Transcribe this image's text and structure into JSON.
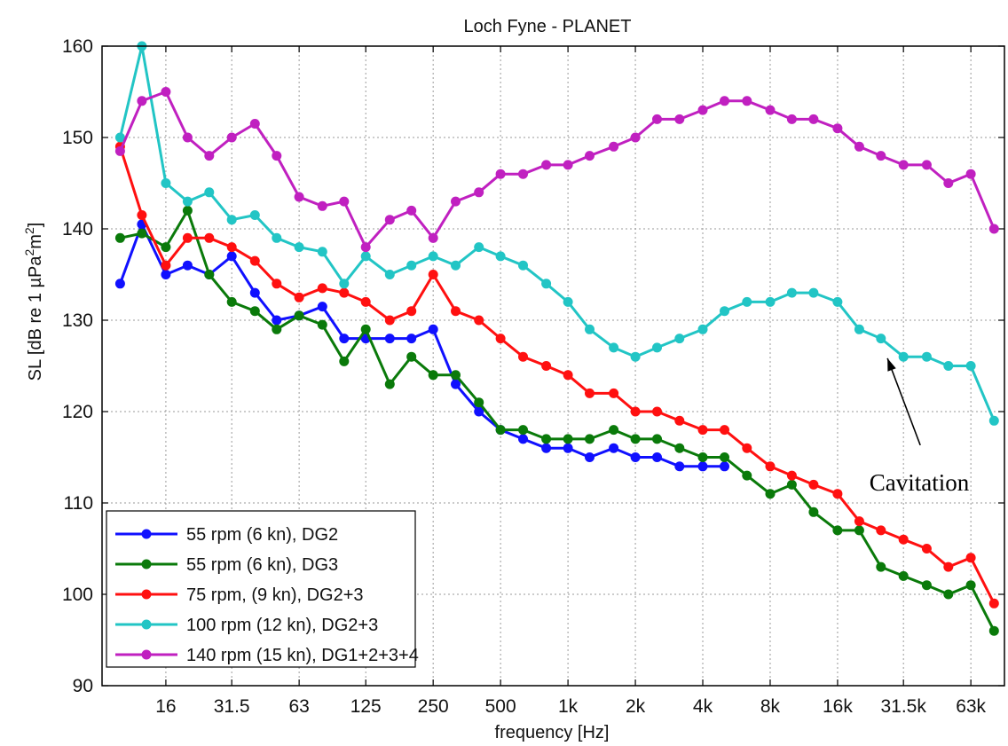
{
  "chart_data": {
    "type": "line",
    "title": "Loch Fyne - PLANET",
    "xlabel": "frequency [Hz]",
    "ylabel": "SL [dB re 1 µPa²m²]",
    "ylabel_parts": {
      "prefix": "SL [dB re 1 ",
      "mu": "µ",
      "pa": "Pa",
      "sup1": "2",
      "m": "m",
      "sup2": "2",
      "close": "]"
    },
    "x_scale": "log",
    "xlim": [
      8.3,
      89000
    ],
    "ylim": [
      90,
      160
    ],
    "x_ticks": [
      {
        "value": 16,
        "label": "16"
      },
      {
        "value": 31.5,
        "label": "31.5"
      },
      {
        "value": 63,
        "label": "63"
      },
      {
        "value": 125,
        "label": "125"
      },
      {
        "value": 250,
        "label": "250"
      },
      {
        "value": 500,
        "label": "500"
      },
      {
        "value": 1000,
        "label": "1k"
      },
      {
        "value": 2000,
        "label": "2k"
      },
      {
        "value": 4000,
        "label": "4k"
      },
      {
        "value": 8000,
        "label": "8k"
      },
      {
        "value": 16000,
        "label": "16k"
      },
      {
        "value": 31500,
        "label": "31.5k"
      },
      {
        "value": 63000,
        "label": "63k"
      }
    ],
    "y_ticks": [
      {
        "value": 90,
        "label": "90"
      },
      {
        "value": 100,
        "label": "100"
      },
      {
        "value": 110,
        "label": "110"
      },
      {
        "value": 120,
        "label": "120"
      },
      {
        "value": 130,
        "label": "130"
      },
      {
        "value": 140,
        "label": "140"
      },
      {
        "value": 150,
        "label": "150"
      },
      {
        "value": 160,
        "label": "160"
      }
    ],
    "grid": true,
    "legend_position": "bottom-left",
    "series": [
      {
        "name": "55 rpm (6 kn), DG2",
        "color": "#1010ff",
        "x": [
          10,
          12.5,
          16,
          20,
          25,
          31.5,
          40,
          50,
          63,
          80,
          100,
          125,
          160,
          200,
          250,
          315,
          400,
          500,
          630,
          800,
          1000,
          1250,
          1600,
          2000,
          2500,
          3150,
          4000,
          5000
        ],
        "y": [
          134,
          140.5,
          135,
          136,
          135,
          137,
          133,
          130,
          130.5,
          131.5,
          128,
          128,
          128,
          128,
          129,
          123,
          120,
          118,
          117,
          116,
          116,
          115,
          116,
          115,
          115,
          114,
          114,
          114
        ]
      },
      {
        "name": "55 rpm (6 kn), DG3",
        "color": "#0a7a0a",
        "x": [
          10,
          12.5,
          16,
          20,
          25,
          31.5,
          40,
          50,
          63,
          80,
          100,
          125,
          160,
          200,
          250,
          315,
          400,
          500,
          630,
          800,
          1000,
          1250,
          1600,
          2000,
          2500,
          3150,
          4000,
          5000,
          6300,
          8000,
          10000,
          12500,
          16000,
          20000,
          25000,
          31500,
          40000,
          50000,
          63000,
          80000
        ],
        "y": [
          139,
          139.5,
          138,
          142,
          135,
          132,
          131,
          129,
          130.5,
          129.5,
          125.5,
          129,
          123,
          126,
          124,
          124,
          121,
          118,
          118,
          117,
          117,
          117,
          118,
          117,
          117,
          116,
          115,
          115,
          113,
          111,
          112,
          109,
          107,
          107,
          103,
          102,
          101,
          100,
          101,
          96
        ]
      },
      {
        "name": "75 rpm, (9 kn), DG2+3",
        "color": "#ff1010",
        "x": [
          10,
          12.5,
          16,
          20,
          25,
          31.5,
          40,
          50,
          63,
          80,
          100,
          125,
          160,
          200,
          250,
          315,
          400,
          500,
          630,
          800,
          1000,
          1250,
          1600,
          2000,
          2500,
          3150,
          4000,
          5000,
          6300,
          8000,
          10000,
          12500,
          16000,
          20000,
          25000,
          31500,
          40000,
          50000,
          63000,
          80000
        ],
        "y": [
          149,
          141.5,
          136,
          139,
          139,
          138,
          136.5,
          134,
          132.5,
          133.5,
          133,
          132,
          130,
          131,
          135,
          131,
          130,
          128,
          126,
          125,
          124,
          122,
          122,
          120,
          120,
          119,
          118,
          118,
          116,
          114,
          113,
          112,
          111,
          108,
          107,
          106,
          105,
          103,
          104,
          99
        ]
      },
      {
        "name": "100 rpm (12 kn), DG2+3",
        "color": "#22c5c5",
        "x": [
          10,
          12.5,
          16,
          20,
          25,
          31.5,
          40,
          50,
          63,
          80,
          100,
          125,
          160,
          200,
          250,
          315,
          400,
          500,
          630,
          800,
          1000,
          1250,
          1600,
          2000,
          2500,
          3150,
          4000,
          5000,
          6300,
          8000,
          10000,
          12500,
          16000,
          20000,
          25000,
          31500,
          40000,
          50000,
          63000,
          80000
        ],
        "y": [
          150,
          160,
          145,
          143,
          144,
          141,
          141.5,
          139,
          138,
          137.5,
          134,
          137,
          135,
          136,
          137,
          136,
          138,
          137,
          136,
          134,
          132,
          129,
          127,
          126,
          127,
          128,
          129,
          131,
          132,
          132,
          133,
          133,
          132,
          129,
          128,
          126,
          126,
          125,
          125,
          119
        ]
      },
      {
        "name": "140 rpm (15 kn), DG1+2+3+4",
        "color": "#c020c0",
        "x": [
          10,
          12.5,
          16,
          20,
          25,
          31.5,
          40,
          50,
          63,
          80,
          100,
          125,
          160,
          200,
          250,
          315,
          400,
          500,
          630,
          800,
          1000,
          1250,
          1600,
          2000,
          2500,
          3150,
          4000,
          5000,
          6300,
          8000,
          10000,
          12500,
          16000,
          20000,
          25000,
          31500,
          40000,
          50000,
          63000,
          80000
        ],
        "y": [
          148.5,
          154,
          155,
          150,
          148,
          150,
          151.5,
          148,
          143.5,
          142.5,
          143,
          138,
          141,
          142,
          139,
          143,
          144,
          146,
          146,
          147,
          147,
          148,
          149,
          150,
          152,
          152,
          153,
          154,
          154,
          153,
          152,
          152,
          151,
          149,
          148,
          147,
          147,
          145,
          146,
          140
        ]
      }
    ],
    "annotations": [
      {
        "text": "Cavitation",
        "points_to": {
          "x": 26000,
          "y": 127
        }
      }
    ]
  }
}
